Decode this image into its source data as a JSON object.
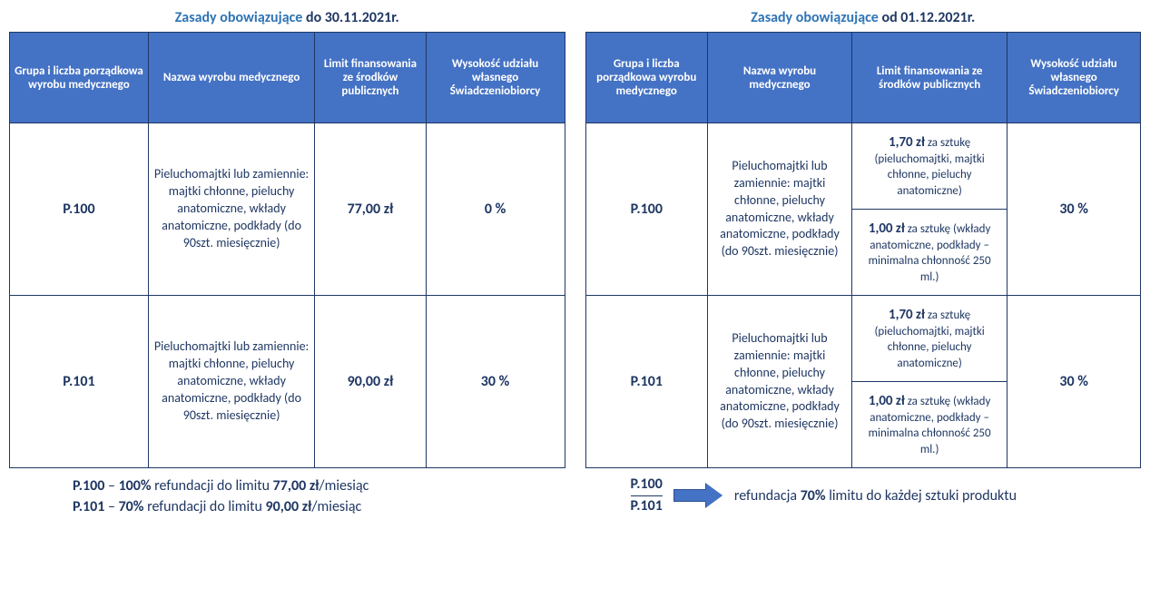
{
  "colors": {
    "header_bg": "#4472c4",
    "header_text": "#ffffff",
    "border": "#1f3763",
    "body_text": "#1f3763",
    "title_blue": "#2e74b5",
    "arrow_fill": "#4472c4",
    "arrow_border": "#2f528f",
    "background": "#ffffff"
  },
  "left": {
    "title_prefix": "Zasady obowiązujące ",
    "title_suffix": "do 30.11.2021r.",
    "columns": [
      "Grupa i liczba porządkowa wyrobu medycznego",
      "Nazwa wyrobu medycznego",
      "Limit finansowania ze środków publicznych",
      "Wysokość udziału własnego Świadczeniobiorcy"
    ],
    "rows": [
      {
        "code": "P.100",
        "desc": "Pieluchomajtki lub zamiennie: majtki chłonne, pieluchy anatomiczne, wkłady anatomiczne, podkłady (do 90szt. miesięcznie)",
        "limit": "77,00 zł",
        "share": "0 %"
      },
      {
        "code": "P.101",
        "desc": "Pieluchomajtki lub zamiennie: majtki chłonne, pieluchy anatomiczne, wkłady anatomiczne, podkłady (do 90szt. miesięcznie)",
        "limit": "90,00 zł",
        "share": "30 %"
      }
    ],
    "footer": {
      "l1_code": "P.100",
      "l1_dash": " – ",
      "l1_pct": "100%",
      "l1_mid": " refundacji do limitu ",
      "l1_amt": "77,00 zł",
      "l1_end": "/miesiąc",
      "l2_code": "P.101",
      "l2_dash": " – ",
      "l2_pct": "70%",
      "l2_mid": " refundacji do limitu ",
      "l2_amt": "90,00 zł",
      "l2_end": "/miesiąc"
    }
  },
  "right": {
    "title_prefix": "Zasady obowiązujące ",
    "title_suffix": "od 01.12.2021r.",
    "columns": [
      "Grupa i liczba porządkowa wyrobu medycznego",
      "Nazwa wyrobu medycznego",
      "Limit finansowania ze środków publicznych",
      "Wysokość udziału własnego Świadczeniobiorcy"
    ],
    "rows": [
      {
        "code": "P.100",
        "desc": "Pieluchomajtki lub zamiennie: majtki chłonne, pieluchy anatomiczne, wkłady anatomiczne, podkłady (do 90szt. miesięcznie)",
        "limit_a_price": "1,70 zł",
        "limit_a_rest": " za sztukę (pieluchomajtki, majtki chłonne, pieluchy anatomiczne)",
        "limit_b_price": "1,00 zł",
        "limit_b_rest": " za sztukę (wkłady anatomiczne, podkłady – minimalna chłonność 250 ml.)",
        "share": "30 %"
      },
      {
        "code": "P.101",
        "desc": "Pieluchomajtki lub zamiennie: majtki chłonne, pieluchy anatomiczne, wkłady anatomiczne, podkłady (do 90szt. miesięcznie)",
        "limit_a_price": "1,70 zł",
        "limit_a_rest": " za sztukę (pieluchomajtki, majtki chłonne, pieluchy anatomiczne)",
        "limit_b_price": "1,00 zł",
        "limit_b_rest": " za sztukę (wkłady anatomiczne, podkłady – minimalna chłonność 250 ml.)",
        "share": "30 %"
      }
    ],
    "footer": {
      "code1": "P.100",
      "code2": "P.101",
      "text_pre": "refundacja ",
      "text_pct": "70%",
      "text_post": " limitu do każdej sztuki produktu"
    }
  }
}
